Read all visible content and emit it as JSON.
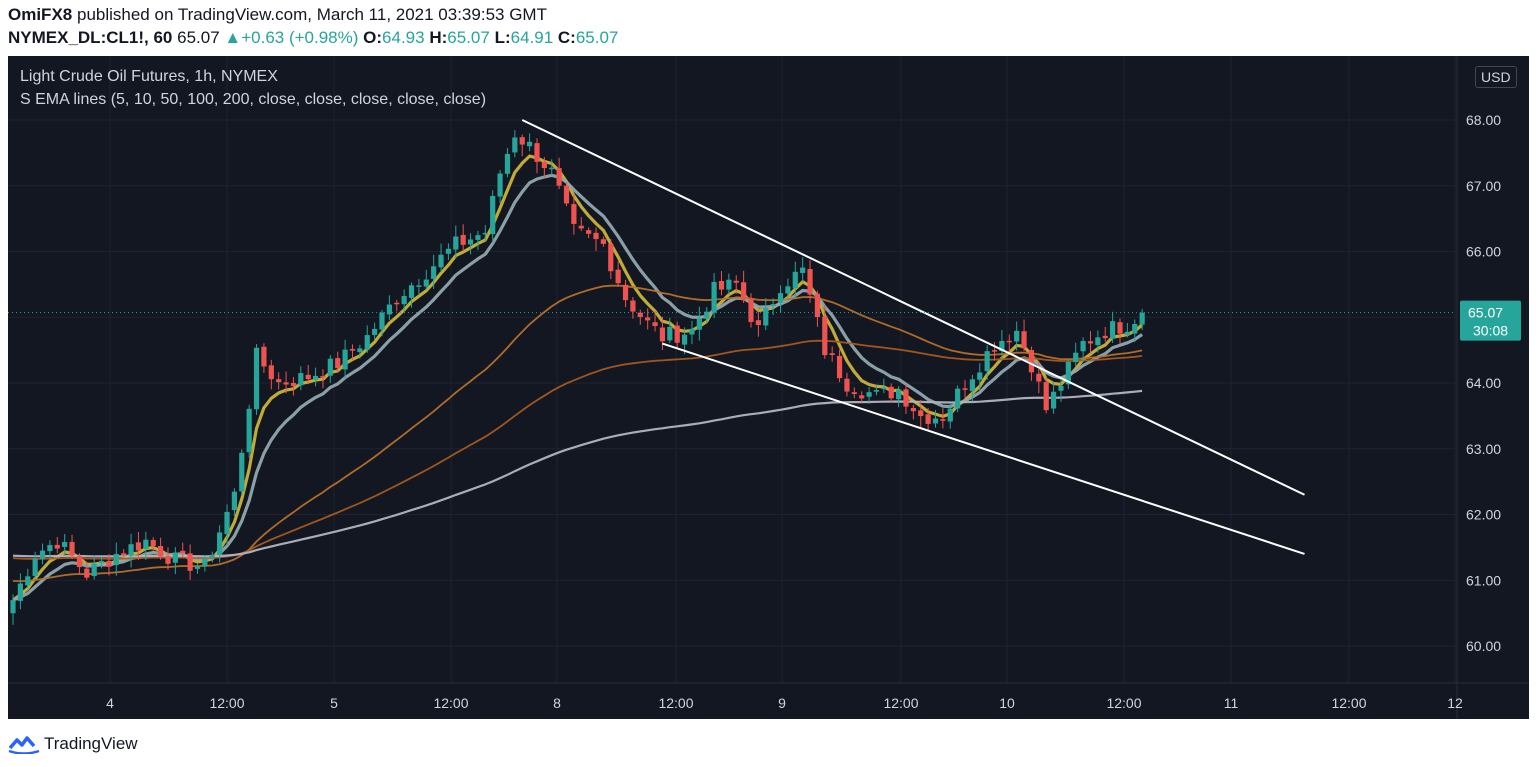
{
  "header": {
    "author": "OmiFX8",
    "published_text": "published on TradingView.com, March 11, 2021 03:39:53 GMT",
    "symbol_line": "NYMEX_DL:CL1!, 60",
    "last": "65.07",
    "change": "+0.63 (+0.98%)",
    "open_label": "O:",
    "open": "64.93",
    "high_label": "H:",
    "high": "65.07",
    "low_label": "L:",
    "low": "64.91",
    "close_label": "C:",
    "close": "65.07"
  },
  "legend": {
    "title": "Light Crude Oil Futures, 1h, NYMEX",
    "indicator": "S EMA lines (5, 10, 50, 100, 200, close, close, close, close, close)"
  },
  "price_axis": {
    "currency": "USD",
    "last_price": "65.07",
    "countdown": "30:08"
  },
  "footer": {
    "brand": "TradingView"
  },
  "colors": {
    "background": "#131722",
    "up": "#26a69a",
    "down": "#ef5350",
    "ema5": "#c9b33a",
    "ema10": "#8fa8ae",
    "ema50": "#b8702a",
    "ema100": "#a85a1e",
    "ema200": "#b2b5be",
    "trendline": "#ffffff"
  },
  "chart_data": {
    "type": "candlestick",
    "title": "Light Crude Oil Futures, 1h, NYMEX",
    "x_ticks": [
      "4",
      "12:00",
      "5",
      "12:00",
      "8",
      "12:00",
      "9",
      "12:00",
      "10",
      "12:00",
      "11",
      "12:00",
      "12"
    ],
    "y_ticks": [
      60,
      61,
      62,
      63,
      64,
      65,
      66,
      67,
      68
    ],
    "ylim": [
      59.5,
      68.5
    ],
    "grid": true,
    "price_anchors": [
      {
        "bar": 0,
        "price": 60.7
      },
      {
        "bar": 3,
        "price": 61.4
      },
      {
        "bar": 6,
        "price": 61.6
      },
      {
        "bar": 10,
        "price": 61.1
      },
      {
        "bar": 14,
        "price": 61.4
      },
      {
        "bar": 18,
        "price": 61.6
      },
      {
        "bar": 22,
        "price": 61.3
      },
      {
        "bar": 26,
        "price": 61.2
      },
      {
        "bar": 30,
        "price": 62.3
      },
      {
        "bar": 33,
        "price": 64.4
      },
      {
        "bar": 36,
        "price": 64.0
      },
      {
        "bar": 40,
        "price": 64.1
      },
      {
        "bar": 44,
        "price": 64.3
      },
      {
        "bar": 48,
        "price": 64.7
      },
      {
        "bar": 52,
        "price": 65.3
      },
      {
        "bar": 56,
        "price": 65.7
      },
      {
        "bar": 60,
        "price": 66.1
      },
      {
        "bar": 64,
        "price": 66.3
      },
      {
        "bar": 66,
        "price": 67.2
      },
      {
        "bar": 68,
        "price": 67.8
      },
      {
        "bar": 70,
        "price": 67.6
      },
      {
        "bar": 73,
        "price": 67.2
      },
      {
        "bar": 76,
        "price": 66.3
      },
      {
        "bar": 80,
        "price": 66.1
      },
      {
        "bar": 83,
        "price": 65.3
      },
      {
        "bar": 86,
        "price": 64.9
      },
      {
        "bar": 88,
        "price": 64.7
      },
      {
        "bar": 92,
        "price": 64.8
      },
      {
        "bar": 95,
        "price": 65.4
      },
      {
        "bar": 98,
        "price": 65.5
      },
      {
        "bar": 101,
        "price": 64.8
      },
      {
        "bar": 104,
        "price": 65.5
      },
      {
        "bar": 107,
        "price": 65.7
      },
      {
        "bar": 110,
        "price": 64.5
      },
      {
        "bar": 113,
        "price": 64.0
      },
      {
        "bar": 117,
        "price": 63.8
      },
      {
        "bar": 120,
        "price": 63.9
      },
      {
        "bar": 123,
        "price": 63.5
      },
      {
        "bar": 126,
        "price": 63.5
      },
      {
        "bar": 129,
        "price": 64.0
      },
      {
        "bar": 133,
        "price": 64.6
      },
      {
        "bar": 136,
        "price": 64.8
      },
      {
        "bar": 138,
        "price": 64.3
      },
      {
        "bar": 140,
        "price": 63.6
      },
      {
        "bar": 142,
        "price": 64.0
      },
      {
        "bar": 145,
        "price": 64.6
      },
      {
        "bar": 148,
        "price": 64.8
      },
      {
        "bar": 151,
        "price": 64.9
      },
      {
        "bar": 153,
        "price": 65.07
      }
    ],
    "bars_total": 154,
    "series": [
      {
        "name": "EMA 5",
        "period": 5
      },
      {
        "name": "EMA 10",
        "period": 10
      },
      {
        "name": "EMA 50",
        "period": 50
      },
      {
        "name": "EMA 100",
        "period": 100
      },
      {
        "name": "EMA 200",
        "period": 200
      }
    ],
    "trendlines": [
      {
        "from": {
          "bar": 69,
          "price": 68.0
        },
        "to": {
          "bar": 175,
          "price": 62.3
        }
      },
      {
        "from": {
          "bar": 88,
          "price": 64.6
        },
        "to": {
          "bar": 175,
          "price": 61.4
        }
      }
    ]
  }
}
